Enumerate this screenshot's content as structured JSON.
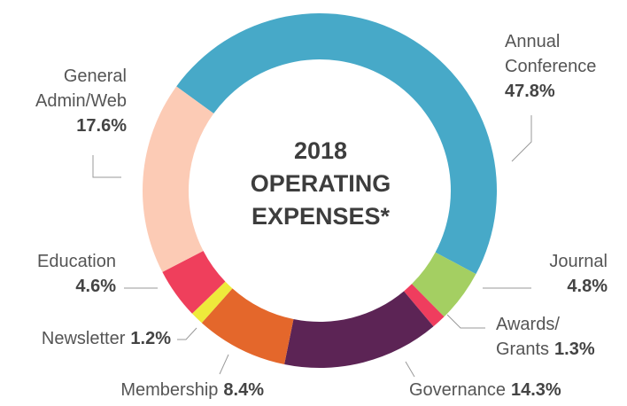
{
  "chart_data": {
    "type": "donut",
    "title": "2018 OPERATING EXPENSES*",
    "categories": [
      "Annual\nConference",
      "Journal",
      "Awards/\nGrants",
      "Governance",
      "Membership",
      "Newsletter",
      "Education",
      "General\nAdmin/Web"
    ],
    "values": [
      47.8,
      4.8,
      1.3,
      14.3,
      8.4,
      1.2,
      4.6,
      17.6
    ],
    "value_labels": [
      "47.8%",
      "4.8%",
      "1.3%",
      "14.3%",
      "8.4%",
      "1.2%",
      "4.6%",
      "17.6%"
    ],
    "colors": [
      "#47a9c8",
      "#a4cf62",
      "#ef3d5e",
      "#5c2455",
      "#e4672b",
      "#eeea3b",
      "#ef3f5c",
      "#fccbb5"
    ]
  }
}
